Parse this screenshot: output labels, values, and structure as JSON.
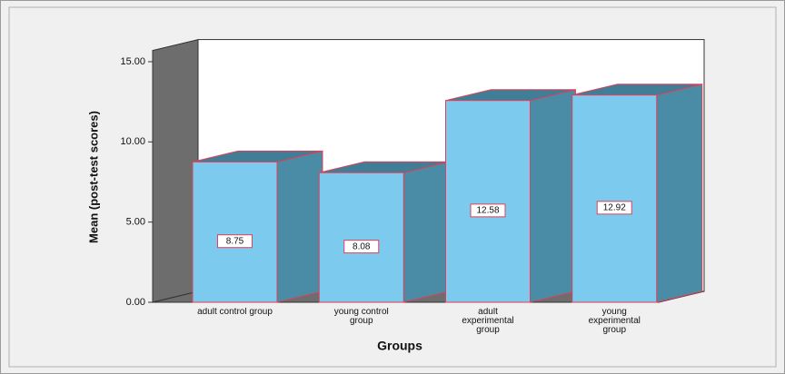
{
  "chart_data": {
    "type": "bar3d",
    "x_label": "Groups",
    "y_label": "Mean (post-test scores)",
    "categories": [
      "adult control group",
      "young control group",
      "adult experimental group",
      "young experimental group"
    ],
    "values": [
      8.75,
      8.08,
      12.58,
      12.92
    ],
    "color": "#7ccbee",
    "ylim": [
      0,
      15.7
    ],
    "yticks": [
      {
        "value": 0,
        "label": "0.00"
      },
      {
        "value": 5,
        "label": "5.00"
      },
      {
        "value": 10,
        "label": "10.00"
      },
      {
        "value": 15,
        "label": "15.00"
      }
    ],
    "grid": false
  }
}
